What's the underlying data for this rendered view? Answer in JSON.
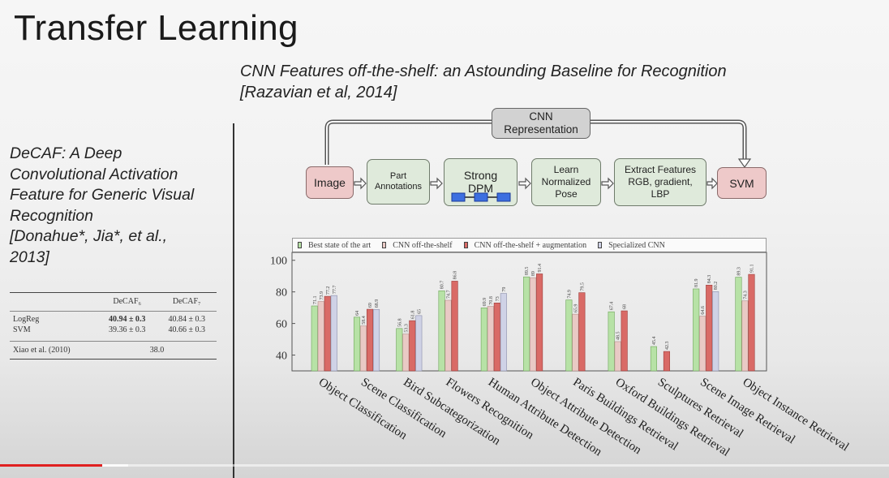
{
  "slide": {
    "title": "Transfer Learning",
    "paper_title_line1": "CNN Features off-the-shelf: an Astounding Baseline for Recognition",
    "paper_title_line2": "[Razavian et al, 2014]",
    "left_citation": [
      "DeCAF: A Deep",
      "Convolutional Activation",
      "Feature for Generic Visual",
      "Recognition",
      "[Donahue*, Jia*, et al.,",
      "2013]"
    ]
  },
  "decaf_table": {
    "headers": [
      "",
      "DeCAF₆",
      "DeCAF₇"
    ],
    "rows": [
      [
        "LogReg",
        "40.94 ± 0.3",
        "40.84 ± 0.3"
      ],
      [
        "SVM",
        "39.36 ± 0.3",
        "40.66 ± 0.3"
      ]
    ],
    "footer": [
      "Xiao et al. (2010)",
      "38.0"
    ]
  },
  "pipeline": {
    "top": "CNN Representation",
    "image": "Image",
    "part": "Part Annotations",
    "strong_dpm": "Strong DPM",
    "learn": "Learn Normalized Pose",
    "extract": "Extract Features RGB, gradient, LBP",
    "svm": "SVM"
  },
  "legend": [
    "Best state of the art",
    "CNN off-the-shelf",
    "CNN off-the-shelf + augmentation",
    "Specialized CNN"
  ],
  "colors": {
    "best": "#b7e2a6",
    "cnn": "#e9c9c5",
    "aug": "#d96a66",
    "spec": "#cfd2e6",
    "progress": "#e02020"
  },
  "chart_data": {
    "type": "bar",
    "categories": [
      "Object Classification",
      "Scene Classification",
      "Bird Subcategorization",
      "Flowers Recognition",
      "Human Attribute Detection",
      "Object Attribute Detection",
      "Paris Buildings Retrieval",
      "Oxford Buildings Retrieval",
      "Sculptures Retrieval",
      "Scene Image Retrieval",
      "Object Instance Retrieval"
    ],
    "series": [
      {
        "name": "Best state of the art",
        "values": [
          71.1,
          64,
          56.8,
          80.7,
          69.9,
          89.5,
          74.9,
          67.4,
          45.4,
          81.9,
          89.3
        ]
      },
      {
        "name": "CNN off-the-shelf",
        "values": [
          73.9,
          58.4,
          53.3,
          74.7,
          70.8,
          89,
          65.9,
          48.5,
          null,
          64.6,
          74.3
        ]
      },
      {
        "name": "CNN off-the-shelf + augmentation",
        "values": [
          77.2,
          69,
          61.8,
          86.8,
          73,
          91.4,
          79.5,
          68,
          42.3,
          84.3,
          91.1
        ]
      },
      {
        "name": "Specialized CNN",
        "values": [
          77.7,
          68.9,
          65,
          null,
          79,
          null,
          null,
          null,
          null,
          80.2,
          null
        ]
      }
    ],
    "value_labels": [
      [
        "71.1",
        "73.9",
        "77.2",
        "77.7"
      ],
      [
        "64",
        "58.4",
        "69",
        "68.9"
      ],
      [
        "56.8",
        "53.3",
        "61.8",
        "65"
      ],
      [
        "80.7",
        "74.7",
        "86.8",
        ""
      ],
      [
        "69.9",
        "70.8",
        "73",
        "79"
      ],
      [
        "89.5",
        "89",
        "91.4",
        ""
      ],
      [
        "74.9",
        "65.9",
        "79.5",
        ""
      ],
      [
        "67.4",
        "48.5",
        "68",
        ""
      ],
      [
        "45.4",
        "",
        "42.3",
        ""
      ],
      [
        "81.9",
        "64.6",
        "84.3",
        "80.2"
      ],
      [
        "89.3",
        "74.3",
        "91.1",
        ""
      ]
    ],
    "yticks": [
      "40",
      "60",
      "80",
      "100"
    ],
    "ylim": [
      30,
      105
    ],
    "legend_position": "top"
  },
  "video": {
    "progress": 0.115
  }
}
